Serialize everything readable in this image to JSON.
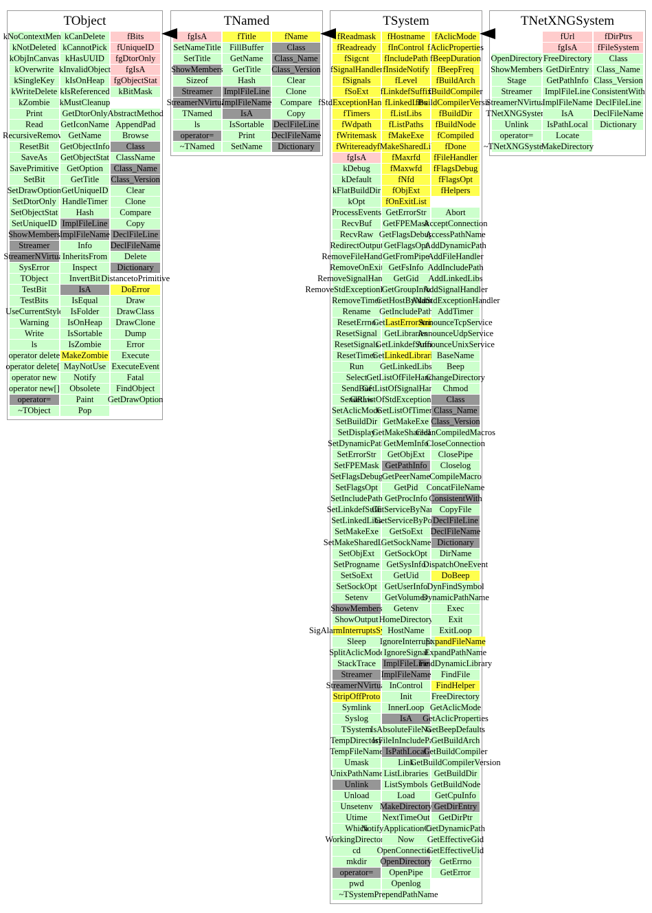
{
  "legend_colors": {
    "method": "#ccffcc",
    "data_member": "#ffcccc",
    "highlighted": "#ffff4d",
    "hidden_utility": "#969696"
  },
  "arrows": [
    {
      "from": "TNamed",
      "to": "TObject"
    },
    {
      "from": "TSystem",
      "to": "TNamed"
    },
    {
      "from": "TNetXNGSystem",
      "to": "TSystem"
    }
  ],
  "classes": [
    {
      "name": "TObject",
      "columns": [
        [
          "kNoContextMenu",
          "kNotDeleted",
          "kObjInCanvas",
          "kOverwrite",
          "kSingleKey",
          "kWriteDelete",
          "kZombie",
          "Print",
          "Read",
          "RecursiveRemove",
          "ResetBit",
          "SaveAs",
          "SavePrimitive",
          "SetBit",
          "SetDrawOption",
          "SetDtorOnly",
          "SetObjectStat",
          "SetUniqueID",
          {
            "t": "ShowMembers",
            "c": "d"
          },
          {
            "t": "Streamer",
            "c": "d"
          },
          {
            "t": "StreamerNVirtual",
            "c": "d"
          },
          "SysError",
          "TObject",
          "TestBit",
          "TestBits",
          "UseCurrentStyle",
          "Warning",
          "Write",
          "ls",
          "operator delete",
          "operator delete[]",
          "operator new",
          "operator new[]",
          {
            "t": "operator=",
            "c": "d"
          },
          "~TObject"
        ],
        [
          "kCanDelete",
          "kCannotPick",
          "kHasUUID",
          "kInvalidObject",
          "kIsOnHeap",
          "kIsReferenced",
          "kMustCleanup",
          "GetDtorOnly",
          "GetIconName",
          "GetName",
          "GetObjectInfo",
          "GetObjectStat",
          "GetOption",
          "GetTitle",
          "GetUniqueID",
          "HandleTimer",
          "Hash",
          {
            "t": "ImplFileLine",
            "c": "d"
          },
          {
            "t": "ImplFileName",
            "c": "d"
          },
          "Info",
          "InheritsFrom",
          "Inspect",
          "InvertBit",
          {
            "t": "IsA",
            "c": "d"
          },
          "IsEqual",
          "IsFolder",
          "IsOnHeap",
          "IsSortable",
          "IsZombie",
          {
            "t": "MakeZombie",
            "c": "y"
          },
          "MayNotUse",
          "Notify",
          "Obsolete",
          "Paint",
          "Pop"
        ],
        [
          {
            "t": "fBits",
            "c": "p"
          },
          {
            "t": "fUniqueID",
            "c": "p"
          },
          {
            "t": "fgDtorOnly",
            "c": "p"
          },
          {
            "t": "fgIsA",
            "c": "p"
          },
          {
            "t": "fgObjectStat",
            "c": "p"
          },
          "kBitMask",
          {
            "t": "",
            "c": "e"
          },
          "AbstractMethod",
          "AppendPad",
          "Browse",
          {
            "t": "Class",
            "c": "d"
          },
          "ClassName",
          {
            "t": "Class_Name",
            "c": "d"
          },
          {
            "t": "Class_Version",
            "c": "d"
          },
          "Clear",
          "Clone",
          "Compare",
          "Copy",
          {
            "t": "DeclFileLine",
            "c": "d"
          },
          {
            "t": "DeclFileName",
            "c": "d"
          },
          "Delete",
          {
            "t": "Dictionary",
            "c": "d"
          },
          {
            "t": "DistancetoPrimitive",
            "c": "w"
          },
          {
            "t": "DoError",
            "c": "y"
          },
          "Draw",
          "DrawClass",
          "DrawClone",
          "Dump",
          "Error",
          "Execute",
          "ExecuteEvent",
          "Fatal",
          "FindObject",
          "GetDrawOption",
          {
            "t": "",
            "c": "e"
          }
        ]
      ]
    },
    {
      "name": "TNamed",
      "columns": [
        [
          {
            "t": "fgIsA",
            "c": "p"
          },
          "SetNameTitle",
          "SetTitle",
          {
            "t": "ShowMembers",
            "c": "d"
          },
          "Sizeof",
          {
            "t": "Streamer",
            "c": "d"
          },
          {
            "t": "StreamerNVirtual",
            "c": "d"
          },
          "TNamed",
          "ls",
          {
            "t": "operator=",
            "c": "d"
          },
          "~TNamed"
        ],
        [
          {
            "t": "fTitle",
            "c": "y"
          },
          "FillBuffer",
          "GetName",
          "GetTitle",
          "Hash",
          {
            "t": "ImplFileLine",
            "c": "d"
          },
          {
            "t": "ImplFileName",
            "c": "d"
          },
          {
            "t": "IsA",
            "c": "d"
          },
          "IsSortable",
          "Print",
          "SetName"
        ],
        [
          {
            "t": "fName",
            "c": "y"
          },
          {
            "t": "Class",
            "c": "d"
          },
          {
            "t": "Class_Name",
            "c": "d"
          },
          {
            "t": "Class_Version",
            "c": "d"
          },
          "Clear",
          "Clone",
          "Compare",
          "Copy",
          {
            "t": "DeclFileLine",
            "c": "d"
          },
          {
            "t": "DeclFileName",
            "c": "d"
          },
          {
            "t": "Dictionary",
            "c": "d"
          }
        ]
      ]
    },
    {
      "name": "TSystem",
      "columns": [
        [
          {
            "t": "fReadmask",
            "c": "y"
          },
          {
            "t": "fReadready",
            "c": "y"
          },
          {
            "t": "fSigcnt",
            "c": "y"
          },
          {
            "t": "fSignalHandler",
            "c": "y"
          },
          {
            "t": "fSignals",
            "c": "y"
          },
          {
            "t": "fSoExt",
            "c": "y"
          },
          {
            "t": "fStdExceptionHandler",
            "c": "y"
          },
          {
            "t": "fTimers",
            "c": "y"
          },
          {
            "t": "fWdpath",
            "c": "y"
          },
          {
            "t": "fWritemask",
            "c": "y"
          },
          {
            "t": "fWriteready",
            "c": "y"
          },
          {
            "t": "fgIsA",
            "c": "p"
          },
          "kDebug",
          "kDefault",
          "kFlatBuildDir",
          "kOpt",
          "ProcessEvents",
          "RecvBuf",
          "RecvRaw",
          "RedirectOutput",
          "RemoveFileHandler",
          "RemoveOnExit",
          "RemoveSignalHandler",
          "RemoveStdExceptionHandler",
          "RemoveTimer",
          "Rename",
          "ResetErrno",
          "ResetSignal",
          "ResetSignals",
          "ResetTimer",
          "Run",
          "Select",
          "SendBuf",
          "SendRaw",
          "SetAclicMode",
          "SetBuildDir",
          "SetDisplay",
          "SetDynamicPath",
          "SetErrorStr",
          "SetFPEMask",
          "SetFlagsDebug",
          "SetFlagsOpt",
          "SetIncludePath",
          "SetLinkdefSuffix",
          "SetLinkedLibs",
          "SetMakeExe",
          "SetMakeSharedLib",
          "SetObjExt",
          "SetProgname",
          "SetSoExt",
          "SetSockOpt",
          "Setenv",
          {
            "t": "ShowMembers",
            "c": "d"
          },
          "ShowOutput",
          {
            "t": "SigAlarmInterruptsSyscalls",
            "c": "g",
            "seg": [
              "SigAla",
              "rmInterruptsSys",
              "calls"
            ]
          },
          "Sleep",
          "SplitAclicMode",
          "StackTrace",
          {
            "t": "Streamer",
            "c": "d"
          },
          {
            "t": "StreamerNVirtual",
            "c": "d"
          },
          {
            "t": "StripOffProto",
            "c": "y"
          },
          "Symlink",
          "Syslog",
          "TSystem",
          "TempDirectory",
          "TempFileName",
          "Umask",
          "UnixPathName",
          {
            "t": "Unlink",
            "c": "d"
          },
          "Unload",
          "Unsetenv",
          "Utime",
          "Which",
          "WorkingDirectory",
          "cd",
          "mkdir",
          {
            "t": "operator=",
            "c": "d"
          },
          "pwd",
          "~TSystem"
        ],
        [
          {
            "t": "fHostname",
            "c": "y"
          },
          {
            "t": "fInControl",
            "c": "y"
          },
          {
            "t": "fIncludePath",
            "c": "y"
          },
          {
            "t": "fInsideNotify",
            "c": "y"
          },
          {
            "t": "fLevel",
            "c": "y"
          },
          {
            "t": "fLinkdefSuffix",
            "c": "y"
          },
          {
            "t": "fLinkedLibs",
            "c": "y"
          },
          {
            "t": "fListLibs",
            "c": "y"
          },
          {
            "t": "fListPaths",
            "c": "y"
          },
          {
            "t": "fMakeExe",
            "c": "y"
          },
          {
            "t": "fMakeSharedLib",
            "c": "y"
          },
          {
            "t": "fMaxrfd",
            "c": "y"
          },
          {
            "t": "fMaxwfd",
            "c": "y"
          },
          {
            "t": "fNfd",
            "c": "y"
          },
          {
            "t": "fObjExt",
            "c": "y"
          },
          {
            "t": "fOnExitList",
            "c": "y"
          },
          "GetErrorStr",
          "GetFPEMask",
          "GetFlagsDebug",
          "GetFlagsOpt",
          "GetFromPipe",
          "GetFsInfo",
          "GetGid",
          "GetGroupInfo",
          "GetHostByName",
          "GetIncludePath",
          {
            "t": "GetLastErrorString",
            "c": "g",
            "seg": [
              "Get",
              "LastErrorString",
              ""
            ]
          },
          "GetLibraries",
          "GetLinkdefSuffix",
          {
            "t": "GetLinkedLibraries",
            "c": "g",
            "seg": [
              "Get",
              "LinkedLibraries",
              ""
            ]
          },
          "GetLinkedLibs",
          "GetListOfFileHandlers",
          "GetListOfSignalHandlers",
          "GetListOfStdExceptionHandlers",
          "GetListOfTimers",
          "GetMakeExe",
          "GetMakeSharedLib",
          "GetMemInfo",
          "GetObjExt",
          {
            "t": "GetPathInfo",
            "c": "d"
          },
          "GetPeerName",
          "GetPid",
          "GetProcInfo",
          "GetServiceByName",
          "GetServiceByPort",
          "GetSoExt",
          "GetSockName",
          "GetSockOpt",
          "GetSysInfo",
          "GetUid",
          "GetUserInfo",
          "GetVolumes",
          "Getenv",
          "HomeDirectory",
          "HostName",
          "IgnoreInterrupt",
          "IgnoreSignal",
          {
            "t": "ImplFileLine",
            "c": "d"
          },
          {
            "t": "ImplFileName",
            "c": "d"
          },
          "InControl",
          "Init",
          "InnerLoop",
          {
            "t": "IsA",
            "c": "d"
          },
          "IsAbsoluteFileName",
          "IsFileInIncludePath",
          {
            "t": "IsPathLocal",
            "c": "d"
          },
          "Link",
          "ListLibraries",
          "ListSymbols",
          "Load",
          {
            "t": "MakeDirectory",
            "c": "d"
          },
          "NextTimeOut",
          "NotifyApplicationCreated",
          "Now",
          "OpenConnection",
          {
            "t": "OpenDirectory",
            "c": "d"
          },
          "OpenPipe",
          "Openlog",
          "PrependPathName"
        ],
        [
          {
            "t": "fAclicMode",
            "c": "y"
          },
          {
            "t": "fAclicProperties",
            "c": "y"
          },
          {
            "t": "fBeepDuration",
            "c": "y"
          },
          {
            "t": "fBeepFreq",
            "c": "y"
          },
          {
            "t": "fBuildArch",
            "c": "y"
          },
          {
            "t": "fBuildCompiler",
            "c": "y"
          },
          {
            "t": "fBuildCompilerVersion",
            "c": "y"
          },
          {
            "t": "fBuildDir",
            "c": "y"
          },
          {
            "t": "fBuildNode",
            "c": "y"
          },
          {
            "t": "fCompiled",
            "c": "y"
          },
          {
            "t": "fDone",
            "c": "y"
          },
          {
            "t": "fFileHandler",
            "c": "y"
          },
          {
            "t": "fFlagsDebug",
            "c": "y"
          },
          {
            "t": "fFlagsOpt",
            "c": "y"
          },
          {
            "t": "fHelpers",
            "c": "y"
          },
          {
            "t": "",
            "c": "e"
          },
          "Abort",
          "AcceptConnection",
          "AccessPathName",
          "AddDynamicPath",
          "AddFileHandler",
          "AddIncludePath",
          "AddLinkedLibs",
          "AddSignalHandler",
          "AddStdExceptionHandler",
          "AddTimer",
          "AnnounceTcpService",
          "AnnounceUdpService",
          "AnnounceUnixService",
          "BaseName",
          "Beep",
          "ChangeDirectory",
          "Chmod",
          {
            "t": "Class",
            "c": "d"
          },
          {
            "t": "Class_Name",
            "c": "d"
          },
          {
            "t": "Class_Version",
            "c": "d"
          },
          "CleanCompiledMacros",
          "CloseConnection",
          "ClosePipe",
          "Closelog",
          "CompileMacro",
          "ConcatFileName",
          {
            "t": "ConsistentWith",
            "c": "d"
          },
          "CopyFile",
          {
            "t": "DeclFileLine",
            "c": "d"
          },
          {
            "t": "DeclFileName",
            "c": "d"
          },
          {
            "t": "Dictionary",
            "c": "d"
          },
          "DirName",
          "DispatchOneEvent",
          {
            "t": "DoBeep",
            "c": "y"
          },
          "DynFindSymbol",
          "DynamicPathName",
          "Exec",
          "Exit",
          "ExitLoop",
          {
            "t": "ExpandFileName",
            "c": "g",
            "seg": [
              "Ex",
              "pandFileName",
              ""
            ]
          },
          "ExpandPathName",
          "FindDynamicLibrary",
          "FindFile",
          {
            "t": "FindHelper",
            "c": "y"
          },
          "FreeDirectory",
          "GetAclicMode",
          "GetAclicProperties",
          "GetBeepDefaults",
          "GetBuildArch",
          "GetBuildCompiler",
          "GetBuildCompilerVersion",
          "GetBuildDir",
          "GetBuildNode",
          "GetCpuInfo",
          {
            "t": "GetDirEntry",
            "c": "d"
          },
          "GetDirPtr",
          "GetDynamicPath",
          "GetEffectiveGid",
          "GetEffectiveUid",
          "GetErrno",
          "GetError",
          {
            "t": "",
            "c": "e"
          },
          {
            "t": "",
            "c": "e"
          }
        ]
      ]
    },
    {
      "name": "TNetXNGSystem",
      "columns": [
        [
          {
            "t": "",
            "c": "e"
          },
          {
            "t": "",
            "c": "e"
          },
          "OpenDirectory",
          "ShowMembers",
          "Stage",
          "Streamer",
          "StreamerNVirtual",
          "TNetXNGSystem",
          "Unlink",
          "operator=",
          "~TNetXNGSystem"
        ],
        [
          {
            "t": "fUrl",
            "c": "p"
          },
          {
            "t": "fgIsA",
            "c": "p"
          },
          "FreeDirectory",
          "GetDirEntry",
          "GetPathInfo",
          "ImplFileLine",
          "ImplFileName",
          "IsA",
          "IsPathLocal",
          "Locate",
          "MakeDirectory"
        ],
        [
          {
            "t": "fDirPtrs",
            "c": "p"
          },
          {
            "t": "fFileSystem",
            "c": "p"
          },
          "Class",
          "Class_Name",
          "Class_Version",
          "ConsistentWith",
          "DeclFileLine",
          "DeclFileName",
          "Dictionary",
          {
            "t": "",
            "c": "e"
          },
          {
            "t": "",
            "c": "e"
          }
        ]
      ]
    }
  ]
}
